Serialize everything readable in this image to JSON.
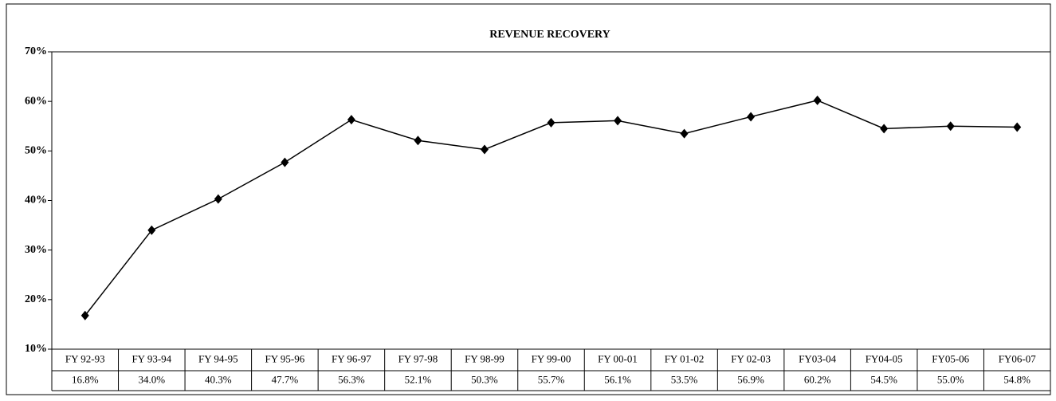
{
  "chart_data": {
    "type": "line",
    "title": "REVENUE RECOVERY",
    "categories": [
      "FY 92-93",
      "FY 93-94",
      "FY 94-95",
      "FY 95-96",
      "FY 96-97",
      "FY 97-98",
      "FY 98-99",
      "FY 99-00",
      "FY 00-01",
      "FY 01-02",
      "FY 02-03",
      "FY03-04",
      "FY04-05",
      "FY05-06",
      "FY06-07"
    ],
    "values": [
      16.8,
      34.0,
      40.3,
      47.7,
      56.3,
      52.1,
      50.3,
      55.7,
      56.1,
      53.5,
      56.9,
      60.2,
      54.5,
      55.0,
      54.8
    ],
    "value_labels": [
      "16.8%",
      "34.0%",
      "40.3%",
      "47.7%",
      "56.3%",
      "52.1%",
      "50.3%",
      "55.7%",
      "56.1%",
      "53.5%",
      "56.9%",
      "60.2%",
      "54.5%",
      "55.0%",
      "54.8%"
    ],
    "color": "#000000",
    "ylim": [
      10,
      70
    ],
    "yticks": [
      {
        "value": 10,
        "label": "10%"
      },
      {
        "value": 20,
        "label": "20%"
      },
      {
        "value": 30,
        "label": "30%"
      },
      {
        "value": 40,
        "label": "40%"
      },
      {
        "value": 50,
        "label": "50%"
      },
      {
        "value": 60,
        "label": "60%"
      },
      {
        "value": 70,
        "label": "70%"
      }
    ],
    "grid": false
  }
}
